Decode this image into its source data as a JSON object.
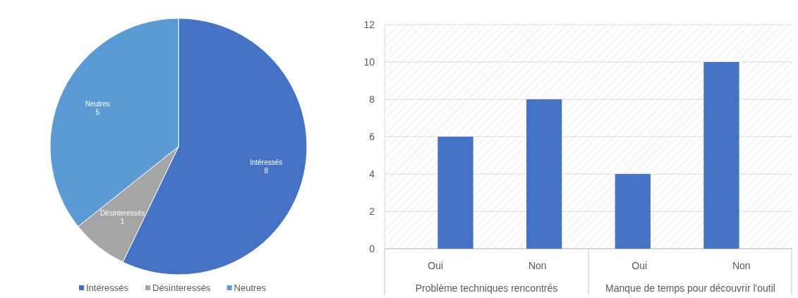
{
  "chart_data": [
    {
      "type": "pie",
      "categories": [
        "Intéressés",
        "Désinteressés",
        "Neutres"
      ],
      "values": [
        8,
        1,
        5
      ],
      "colors": [
        "#4472c4",
        "#a5a5a5",
        "#5b9bd5"
      ],
      "data_labels": true,
      "legend": "bottom"
    },
    {
      "type": "bar",
      "categories": [
        "Oui",
        "Non",
        "Oui",
        "Non"
      ],
      "values": [
        6,
        8,
        4,
        10
      ],
      "color": "#4472c4",
      "ylim": [
        0,
        12
      ],
      "yticks": [
        0,
        2,
        4,
        6,
        8,
        10,
        12
      ],
      "grid": "y",
      "annotations": [
        "Problème techniques rencontrés",
        "Manque de temps pour découvrir l'outil"
      ]
    }
  ]
}
